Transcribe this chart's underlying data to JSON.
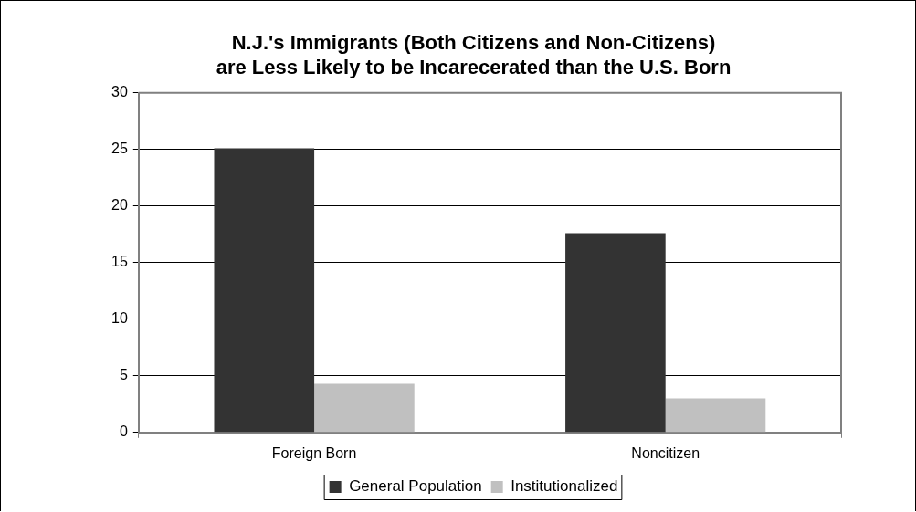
{
  "chart_data": {
    "type": "bar",
    "title": "N.J.'s Immigrants (Both Citizens and Non-Citizens) are Less Likely to be Incarecerated than the U.S. Born",
    "categories": [
      "Foreign Born",
      "Noncitizen"
    ],
    "series": [
      {
        "name": "General Population",
        "color": "#333333",
        "values": [
          25.1,
          17.6
        ]
      },
      {
        "name": "Institutionalized",
        "color": "#c0c0c0",
        "values": [
          4.3,
          3.0
        ]
      }
    ],
    "ylim": [
      0,
      30
    ],
    "yticks": [
      0,
      5,
      10,
      15,
      20,
      25,
      30
    ],
    "grid": "y",
    "legend": "bottom"
  }
}
